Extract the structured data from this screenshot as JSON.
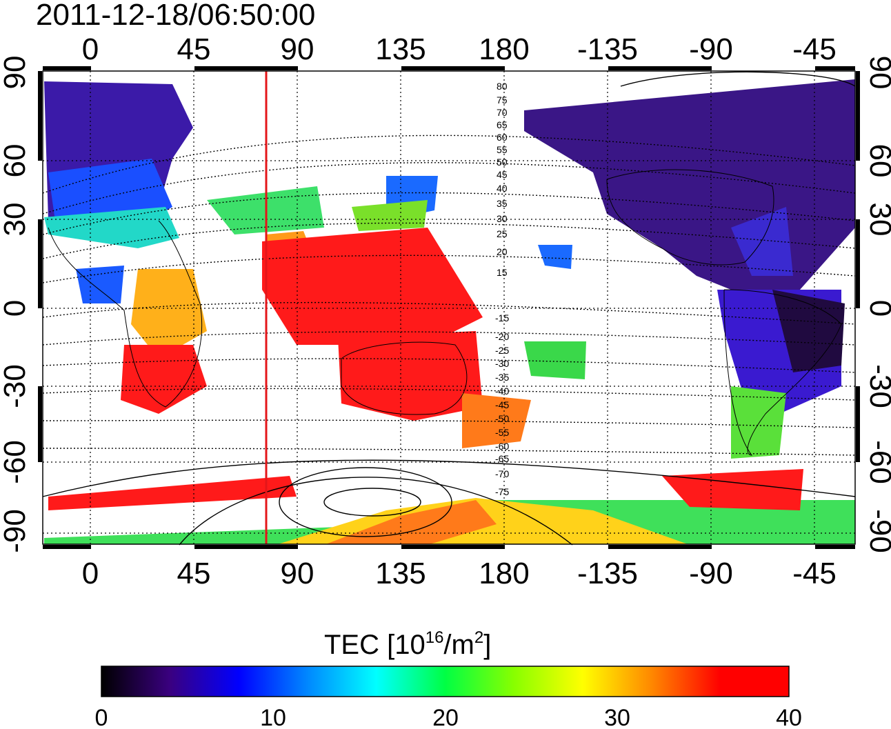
{
  "timestamp": "2011-12-18/06:50:00",
  "map": {
    "top_lon_labels": [
      "0",
      "45",
      "90",
      "135",
      "180",
      "-135",
      "-90",
      "-45"
    ],
    "bottom_lon_labels": [
      "0",
      "45",
      "90",
      "135",
      "180",
      "-135",
      "-90",
      "-45"
    ],
    "lat_labels_left": [
      "90",
      "60",
      "30",
      "0",
      "-30",
      "-60",
      "-90"
    ],
    "lat_labels_right": [
      "90",
      "60",
      "30",
      "0",
      "-30",
      "-60",
      "-90"
    ],
    "marker_line_lon": 77,
    "marker_line_color": "#e4161a",
    "contour_labels_north": [
      "80",
      "75",
      "70",
      "65",
      "60",
      "55",
      "50",
      "45",
      "40",
      "35",
      "30",
      "25",
      "20",
      "15"
    ],
    "contour_labels_south": [
      "-15",
      "-20",
      "-25",
      "-30",
      "-35",
      "-40",
      "-45",
      "-50",
      "-55",
      "-60",
      "-65",
      "-70",
      "-75"
    ]
  },
  "colorbar": {
    "label_main": "TEC  [10",
    "label_exp1": "16",
    "label_mid": "/m",
    "label_exp2": "2",
    "label_end": "]",
    "ticks": [
      "0",
      "10",
      "20",
      "30",
      "40"
    ],
    "min": 0,
    "max": 40,
    "stops": [
      "#000000",
      "#3a0080",
      "#0000ff",
      "#0088ff",
      "#00ffff",
      "#00ff44",
      "#88ff00",
      "#ffff00",
      "#ff8800",
      "#ff0000",
      "#ff0000"
    ]
  },
  "regions": [
    {
      "name": "europe-asia-north",
      "color": "#3b1aa8"
    },
    {
      "name": "north-america",
      "color": "#3a1686"
    },
    {
      "name": "south-america-core",
      "color": "#200a40"
    },
    {
      "name": "africa-south",
      "color": "#ff1a1a"
    },
    {
      "name": "australia",
      "color": "#ff1a1a"
    },
    {
      "name": "antarctica-band",
      "color": "#ffd21a"
    }
  ]
}
